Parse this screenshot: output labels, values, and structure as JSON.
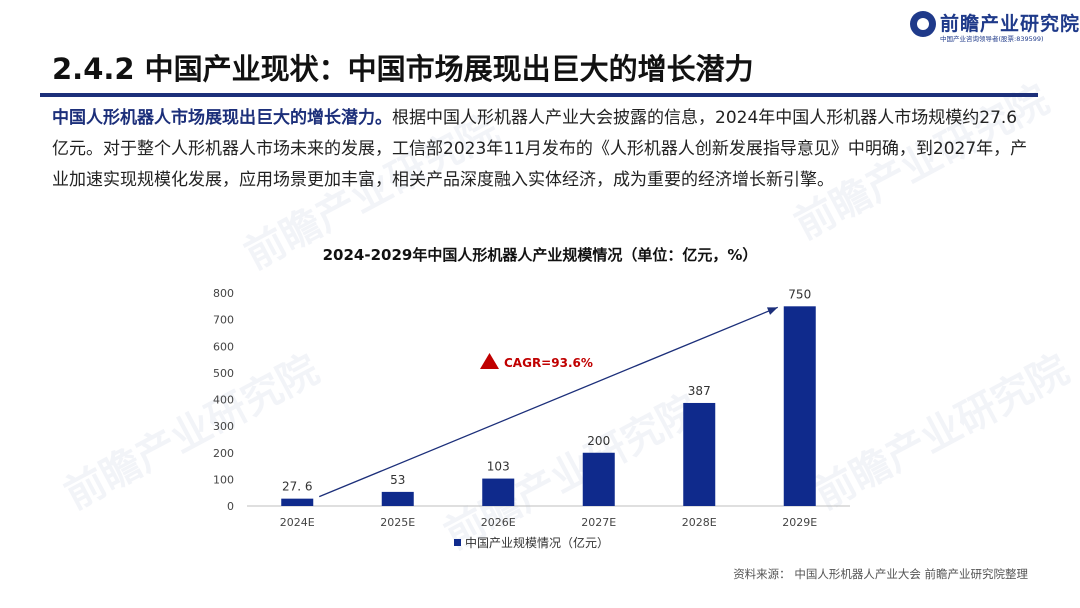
{
  "logo": {
    "name": "前瞻产业研究院",
    "tagline": "中国产业咨询领导者(股票:839599)"
  },
  "page_title": "2.4.2 中国产业现状：中国市场展现出巨大的增长潜力",
  "intro": {
    "lead": "中国人形机器人市场展现出巨大的增长潜力。",
    "body": "根据中国人形机器人产业大会披露的信息，2024年中国人形机器人市场规模约27.6亿元。对于整个人形机器人市场未来的发展，工信部2023年11月发布的《人形机器人创新发展指导意见》中明确，到2027年，产业加速实现规模化发展，应用场景更加丰富，相关产品深度融入实体经济，成为重要的经济增长新引擎。"
  },
  "colors": {
    "accent": "#1c2f7a",
    "bar": "#0f2a8c",
    "cagr_marker": "#c00000"
  },
  "chart_data": {
    "type": "bar",
    "title": "2024-2029年中国人形机器人产业规模情况（单位：亿元，%）",
    "categories": [
      "2024E",
      "2025E",
      "2026E",
      "2027E",
      "2028E",
      "2029E"
    ],
    "series": [
      {
        "name": "中国产业规模情况（亿元）",
        "values": [
          27.6,
          53,
          103,
          200,
          387,
          750
        ],
        "labels": [
          "27. 6",
          "53",
          "103",
          "200",
          "387",
          "750"
        ]
      }
    ],
    "y_ticks": [
      0,
      100,
      200,
      300,
      400,
      500,
      600,
      700,
      800
    ],
    "ylim": [
      0,
      800
    ],
    "grid": false,
    "legend": "bottom-center",
    "annotation": {
      "text": "CAGR=93.6%",
      "arrow_from": {
        "x": "2024E",
        "y": 27.6
      },
      "arrow_to": {
        "x": "2029E",
        "y": 750
      }
    }
  },
  "source": "资料来源： 中国人形机器人产业大会 前瞻产业研究院整理",
  "watermark_text": "前瞻产业研究院"
}
